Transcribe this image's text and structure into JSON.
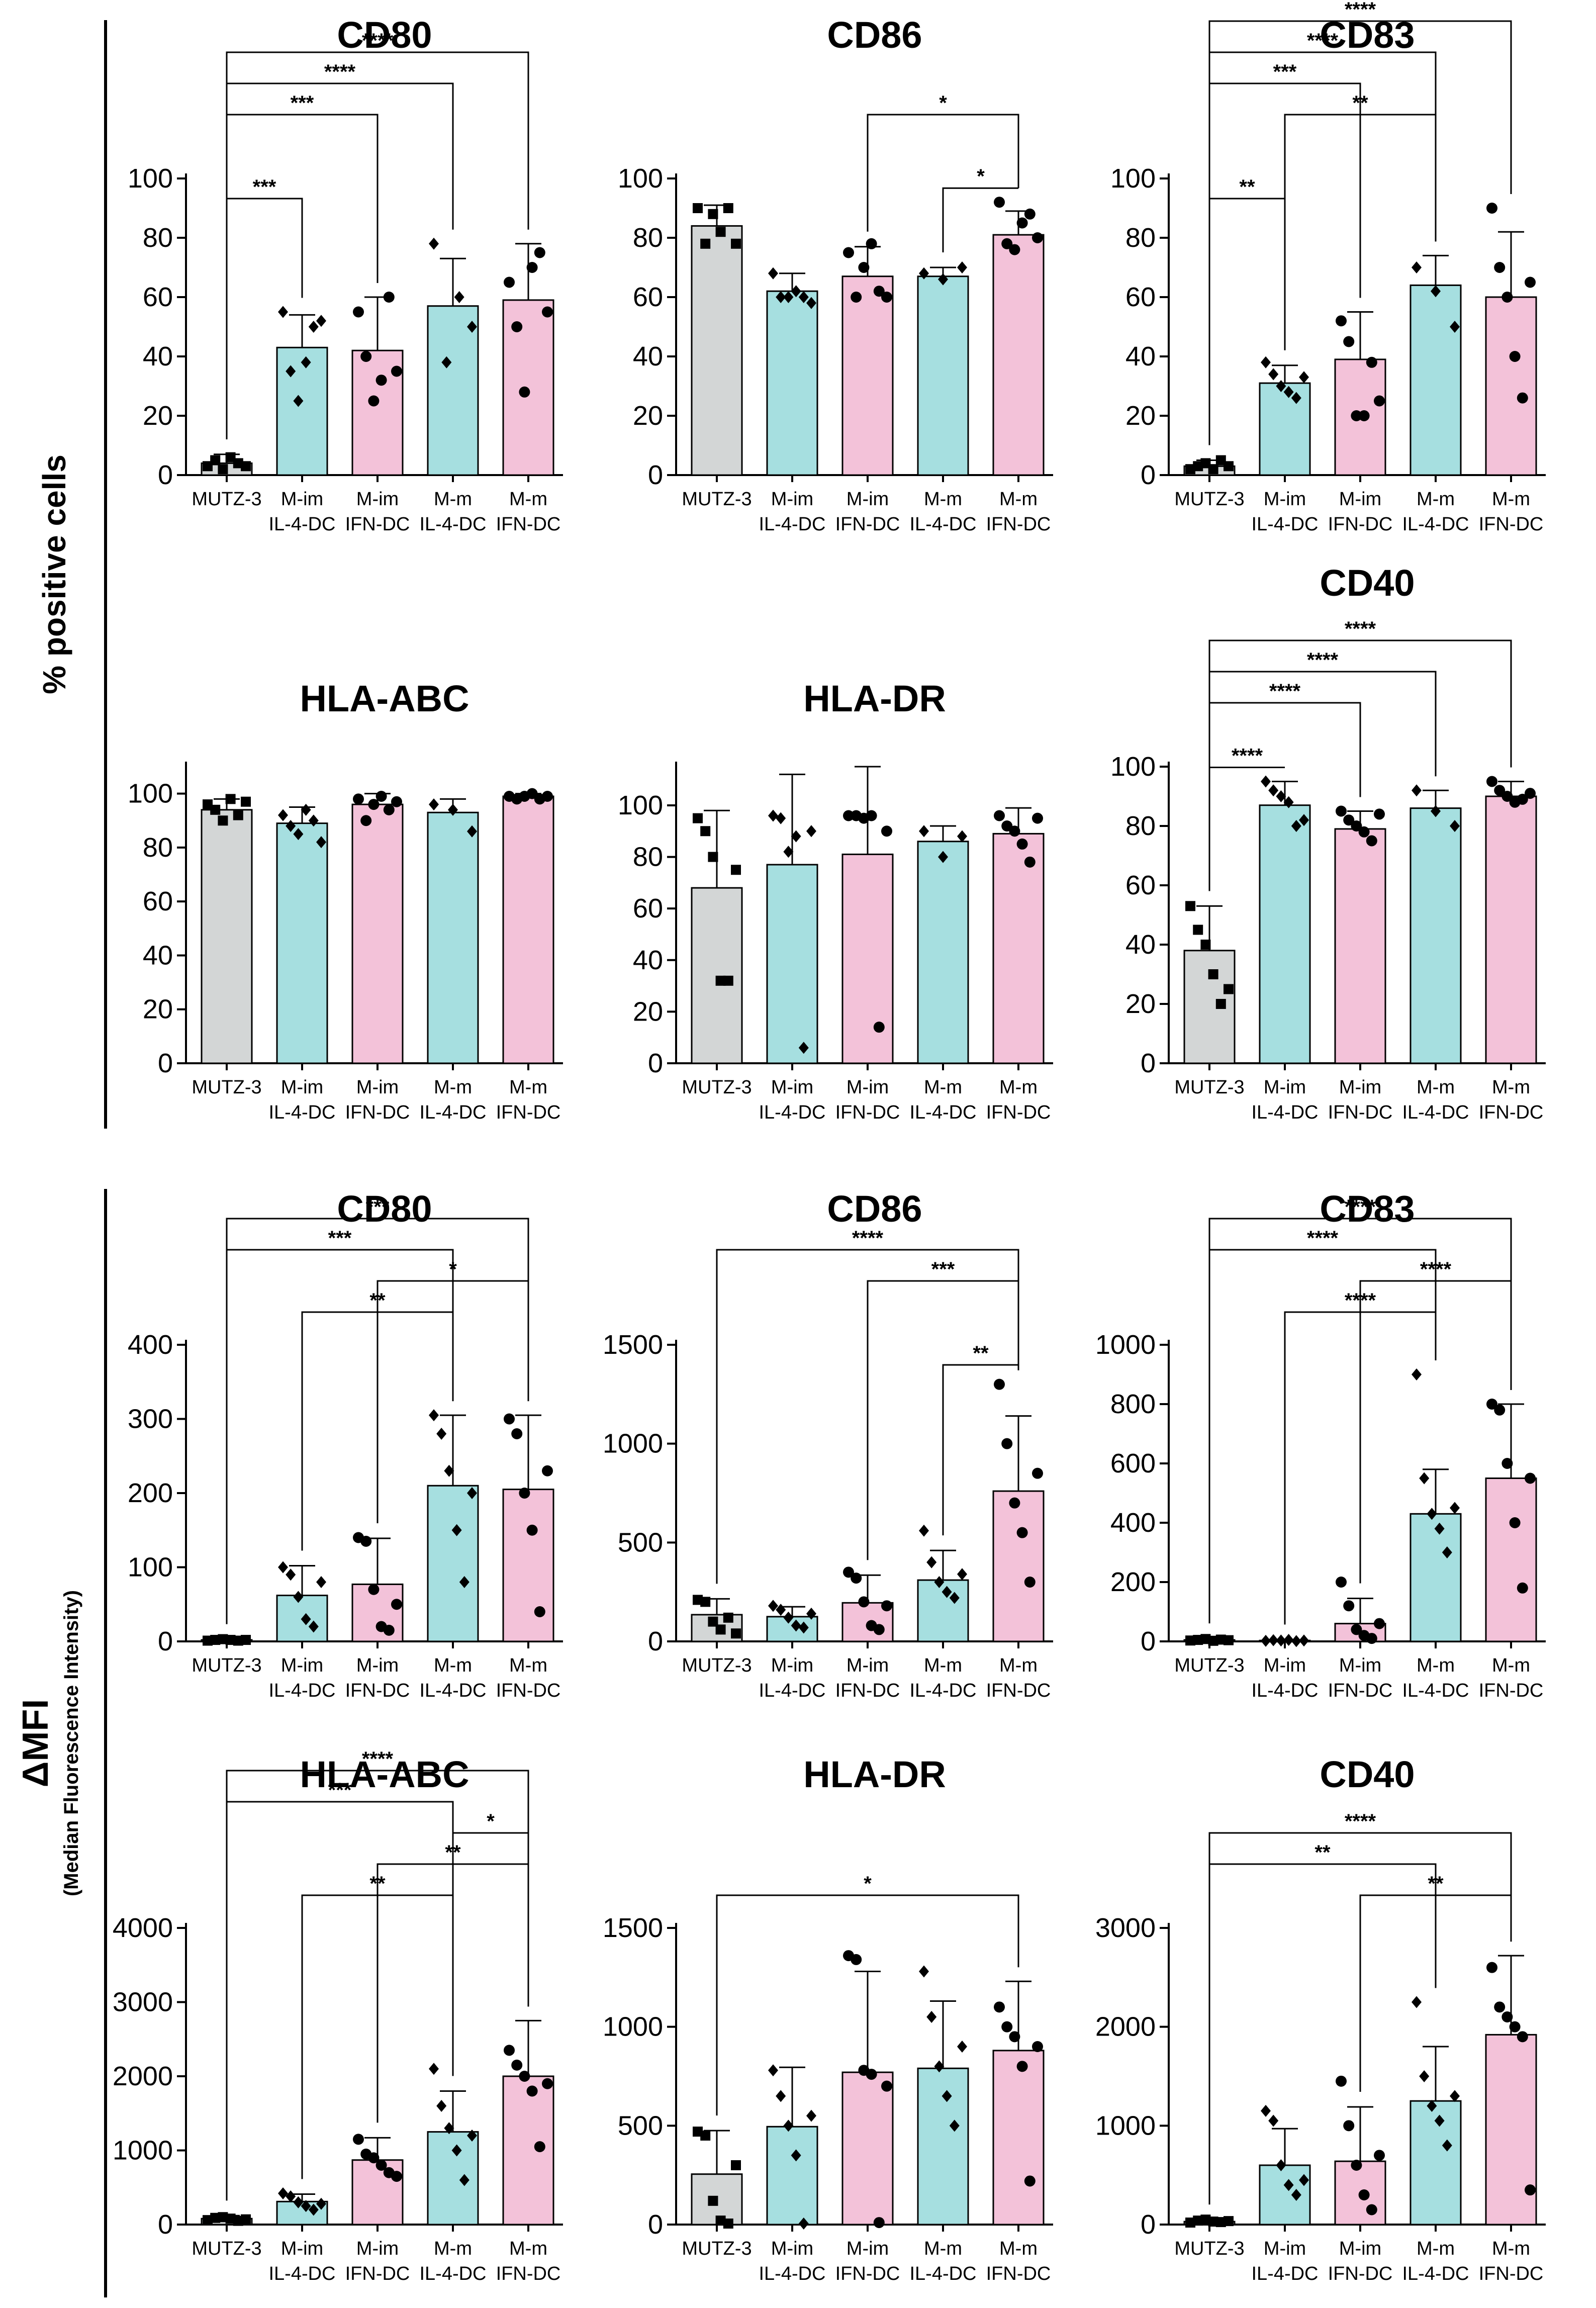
{
  "colors": {
    "gray": "#d3d6d6",
    "cyan": "#a6dfe0",
    "pink": "#f3c2d9",
    "axis": "#000000"
  },
  "sections": [
    {
      "ylabel": "% positive cells",
      "ylabel_sub": ""
    },
    {
      "ylabel": "ΔMFI",
      "ylabel_sub": "(Median Fluorescence Intensity)"
    }
  ],
  "chart_data": [
    {
      "type": "bar",
      "section": 0,
      "row": 0,
      "col": 0,
      "title": "CD80",
      "categories": [
        "MUTZ-3",
        "M-im IL-4-DC",
        "M-im IFN-DC",
        "M-m IL-4-DC",
        "M-m IFN-DC"
      ],
      "values": [
        4,
        43,
        42,
        57,
        59
      ],
      "errors": [
        3,
        11,
        18,
        16,
        19
      ],
      "ylim": [
        0,
        100
      ],
      "yticks": [
        0,
        20,
        40,
        60,
        80,
        100
      ],
      "points": [
        [
          3,
          5,
          2,
          6,
          4,
          3
        ],
        [
          55,
          35,
          25,
          38,
          50,
          52
        ],
        [
          55,
          40,
          25,
          32,
          60,
          35
        ],
        [
          78,
          38,
          60,
          50
        ],
        [
          65,
          50,
          28,
          70,
          75,
          55
        ]
      ],
      "markers": [
        "square",
        "diamond",
        "circle",
        "diamond",
        "circle"
      ],
      "sig": [
        {
          "from": 0,
          "to": 1,
          "label": "***"
        },
        {
          "from": 0,
          "to": 2,
          "label": "***"
        },
        {
          "from": 0,
          "to": 3,
          "label": "****"
        },
        {
          "from": 0,
          "to": 4,
          "label": "****"
        }
      ]
    },
    {
      "type": "bar",
      "section": 0,
      "row": 0,
      "col": 1,
      "title": "CD86",
      "categories": [
        "MUTZ-3",
        "M-im IL-4-DC",
        "M-im IFN-DC",
        "M-m IL-4-DC",
        "M-m IFN-DC"
      ],
      "values": [
        84,
        62,
        67,
        67,
        81
      ],
      "errors": [
        7,
        6,
        10,
        3,
        8
      ],
      "ylim": [
        0,
        100
      ],
      "yticks": [
        0,
        20,
        40,
        60,
        80,
        100
      ],
      "points": [
        [
          90,
          78,
          88,
          82,
          90,
          78
        ],
        [
          68,
          60,
          60,
          62,
          60,
          58
        ],
        [
          75,
          60,
          70,
          78,
          62,
          60
        ],
        [
          68,
          66,
          70
        ],
        [
          92,
          78,
          76,
          85,
          88,
          80
        ]
      ],
      "markers": [
        "square",
        "diamond",
        "circle",
        "diamond",
        "circle"
      ],
      "sig": [
        {
          "from": 3,
          "to": 4,
          "label": "*"
        },
        {
          "from": 2,
          "to": 4,
          "label": "*"
        }
      ]
    },
    {
      "type": "bar",
      "section": 0,
      "row": 0,
      "col": 2,
      "title": "CD83",
      "categories": [
        "MUTZ-3",
        "M-im IL-4-DC",
        "M-im IFN-DC",
        "M-m IL-4-DC",
        "M-m IFN-DC"
      ],
      "values": [
        3,
        31,
        39,
        64,
        60
      ],
      "errors": [
        2,
        6,
        16,
        10,
        22
      ],
      "ylim": [
        0,
        100
      ],
      "yticks": [
        0,
        20,
        40,
        60,
        80,
        100
      ],
      "points": [
        [
          2,
          3,
          4,
          2,
          5,
          3
        ],
        [
          38,
          34,
          30,
          28,
          26,
          33
        ],
        [
          52,
          45,
          20,
          20,
          38,
          25
        ],
        [
          70,
          62,
          50
        ],
        [
          90,
          70,
          60,
          40,
          26,
          65
        ]
      ],
      "markers": [
        "square",
        "diamond",
        "circle",
        "diamond",
        "circle"
      ],
      "sig": [
        {
          "from": 0,
          "to": 1,
          "label": "**"
        },
        {
          "from": 1,
          "to": 3,
          "label": "**"
        },
        {
          "from": 0,
          "to": 2,
          "label": "***"
        },
        {
          "from": 0,
          "to": 3,
          "label": "****"
        },
        {
          "from": 0,
          "to": 4,
          "label": "****"
        }
      ]
    },
    {
      "type": "bar",
      "section": 0,
      "row": 1,
      "col": 0,
      "title": "HLA-ABC",
      "categories": [
        "MUTZ-3",
        "M-im IL-4-DC",
        "M-im IFN-DC",
        "M-m IL-4-DC",
        "M-m IFN-DC"
      ],
      "values": [
        94,
        89,
        96,
        93,
        99
      ],
      "errors": [
        4,
        6,
        4,
        5,
        1
      ],
      "ylim": [
        0,
        110
      ],
      "yticks": [
        0,
        20,
        40,
        60,
        80,
        100
      ],
      "points": [
        [
          96,
          94,
          90,
          98,
          92,
          97
        ],
        [
          92,
          88,
          85,
          94,
          90,
          82
        ],
        [
          98,
          90,
          96,
          99,
          94,
          97
        ],
        [
          96,
          94,
          86
        ],
        [
          99,
          98,
          99,
          100,
          98,
          99
        ]
      ],
      "markers": [
        "square",
        "diamond",
        "circle",
        "diamond",
        "circle"
      ],
      "sig": []
    },
    {
      "type": "bar",
      "section": 0,
      "row": 1,
      "col": 1,
      "title": "HLA-DR",
      "categories": [
        "MUTZ-3",
        "M-im IL-4-DC",
        "M-im IFN-DC",
        "M-m IL-4-DC",
        "M-m IFN-DC"
      ],
      "values": [
        68,
        77,
        81,
        86,
        89
      ],
      "errors": [
        30,
        35,
        34,
        6,
        10
      ],
      "ylim": [
        0,
        115
      ],
      "yticks": [
        0,
        20,
        40,
        60,
        80,
        100
      ],
      "points": [
        [
          95,
          90,
          80,
          32,
          32,
          75
        ],
        [
          96,
          95,
          82,
          88,
          6,
          90
        ],
        [
          96,
          96,
          95,
          96,
          14,
          90
        ],
        [
          90,
          80,
          88
        ],
        [
          96,
          92,
          90,
          85,
          78,
          95
        ]
      ],
      "markers": [
        "square",
        "diamond",
        "circle",
        "diamond",
        "circle"
      ],
      "sig": []
    },
    {
      "type": "bar",
      "section": 0,
      "row": 1,
      "col": 2,
      "title": "CD40",
      "categories": [
        "MUTZ-3",
        "M-im IL-4-DC",
        "M-im IFN-DC",
        "M-m IL-4-DC",
        "M-m IFN-DC"
      ],
      "values": [
        38,
        87,
        79,
        86,
        90
      ],
      "errors": [
        15,
        8,
        6,
        6,
        5
      ],
      "ylim": [
        0,
        100
      ],
      "yticks": [
        0,
        20,
        40,
        60,
        80,
        100
      ],
      "points": [
        [
          53,
          45,
          40,
          30,
          20,
          25
        ],
        [
          95,
          92,
          90,
          88,
          80,
          82
        ],
        [
          85,
          82,
          80,
          78,
          75,
          84
        ],
        [
          92,
          85,
          80
        ],
        [
          95,
          92,
          90,
          88,
          89,
          91
        ]
      ],
      "markers": [
        "square",
        "diamond",
        "circle",
        "diamond",
        "circle"
      ],
      "sig": [
        {
          "from": 0,
          "to": 1,
          "label": "****"
        },
        {
          "from": 0,
          "to": 2,
          "label": "****"
        },
        {
          "from": 0,
          "to": 3,
          "label": "****"
        },
        {
          "from": 0,
          "to": 4,
          "label": "****"
        }
      ]
    },
    {
      "type": "bar",
      "section": 1,
      "row": 0,
      "col": 0,
      "title": "CD80",
      "categories": [
        "MUTZ-3",
        "M-im IL-4-DC",
        "M-im IFN-DC",
        "M-m IL-4-DC",
        "M-m IFN-DC"
      ],
      "values": [
        2,
        62,
        77,
        210,
        205
      ],
      "errors": [
        1,
        40,
        62,
        95,
        100
      ],
      "ylim": [
        0,
        400
      ],
      "yticks": [
        0,
        100,
        200,
        300,
        400
      ],
      "points": [
        [
          1,
          2,
          3,
          2,
          1,
          2
        ],
        [
          100,
          90,
          60,
          30,
          20,
          80
        ],
        [
          140,
          135,
          70,
          20,
          15,
          50
        ],
        [
          305,
          280,
          230,
          150,
          80,
          200
        ],
        [
          300,
          280,
          200,
          150,
          40,
          230
        ]
      ],
      "markers": [
        "square",
        "diamond",
        "circle",
        "diamond",
        "circle"
      ],
      "sig": [
        {
          "from": 1,
          "to": 3,
          "label": "**"
        },
        {
          "from": 2,
          "to": 4,
          "label": "*"
        },
        {
          "from": 0,
          "to": 3,
          "label": "***"
        },
        {
          "from": 0,
          "to": 4,
          "label": "***"
        }
      ]
    },
    {
      "type": "bar",
      "section": 1,
      "row": 0,
      "col": 1,
      "title": "CD86",
      "categories": [
        "MUTZ-3",
        "M-im IL-4-DC",
        "M-im IFN-DC",
        "M-m IL-4-DC",
        "M-m IFN-DC"
      ],
      "values": [
        135,
        125,
        195,
        310,
        760
      ],
      "errors": [
        80,
        50,
        140,
        150,
        380
      ],
      "ylim": [
        0,
        1500
      ],
      "yticks": [
        0,
        500,
        1000,
        1500
      ],
      "points": [
        [
          210,
          200,
          100,
          60,
          120,
          40
        ],
        [
          180,
          160,
          120,
          80,
          70,
          140
        ],
        [
          350,
          320,
          200,
          80,
          60,
          180
        ],
        [
          560,
          400,
          300,
          250,
          220,
          340
        ],
        [
          1300,
          1000,
          700,
          550,
          300,
          850
        ]
      ],
      "markers": [
        "square",
        "diamond",
        "circle",
        "diamond",
        "circle"
      ],
      "sig": [
        {
          "from": 3,
          "to": 4,
          "label": "**"
        },
        {
          "from": 2,
          "to": 4,
          "label": "***"
        },
        {
          "from": 0,
          "to": 4,
          "label": "****"
        }
      ]
    },
    {
      "type": "bar",
      "section": 1,
      "row": 0,
      "col": 2,
      "title": "CD83",
      "categories": [
        "MUTZ-3",
        "M-im IL-4-DC",
        "M-im IFN-DC",
        "M-m IL-4-DC",
        "M-m IFN-DC"
      ],
      "values": [
        5,
        3,
        60,
        430,
        550
      ],
      "errors": [
        5,
        3,
        85,
        150,
        250
      ],
      "ylim": [
        0,
        1000
      ],
      "yticks": [
        0,
        200,
        400,
        600,
        800,
        1000
      ],
      "points": [
        [
          3,
          5,
          8,
          2,
          6,
          4
        ],
        [
          2,
          4,
          3,
          5,
          1,
          3
        ],
        [
          200,
          120,
          40,
          20,
          10,
          60
        ],
        [
          900,
          550,
          430,
          380,
          300,
          450
        ],
        [
          800,
          780,
          600,
          400,
          180,
          550
        ]
      ],
      "markers": [
        "square",
        "diamond",
        "circle",
        "diamond",
        "circle"
      ],
      "sig": [
        {
          "from": 1,
          "to": 3,
          "label": "****"
        },
        {
          "from": 2,
          "to": 4,
          "label": "****"
        },
        {
          "from": 0,
          "to": 3,
          "label": "****"
        },
        {
          "from": 0,
          "to": 4,
          "label": "****"
        }
      ]
    },
    {
      "type": "bar",
      "section": 1,
      "row": 1,
      "col": 0,
      "title": "HLA-ABC",
      "categories": [
        "MUTZ-3",
        "M-im IL-4-DC",
        "M-im IFN-DC",
        "M-m IL-4-DC",
        "M-m IFN-DC"
      ],
      "values": [
        80,
        310,
        870,
        1250,
        2000
      ],
      "errors": [
        40,
        100,
        300,
        550,
        750
      ],
      "ylim": [
        0,
        4000
      ],
      "yticks": [
        0,
        1000,
        2000,
        3000,
        4000
      ],
      "points": [
        [
          60,
          90,
          100,
          80,
          50,
          70
        ],
        [
          420,
          380,
          300,
          250,
          200,
          280
        ],
        [
          1150,
          950,
          900,
          800,
          700,
          650
        ],
        [
          2100,
          1600,
          1300,
          1000,
          600,
          1200
        ],
        [
          2350,
          2150,
          2000,
          1800,
          1050,
          1900
        ]
      ],
      "markers": [
        "square",
        "diamond",
        "circle",
        "diamond",
        "circle"
      ],
      "sig": [
        {
          "from": 1,
          "to": 3,
          "label": "**"
        },
        {
          "from": 2,
          "to": 4,
          "label": "**"
        },
        {
          "from": 3,
          "to": 4,
          "label": "*"
        },
        {
          "from": 0,
          "to": 3,
          "label": "***"
        },
        {
          "from": 0,
          "to": 4,
          "label": "****"
        }
      ]
    },
    {
      "type": "bar",
      "section": 1,
      "row": 1,
      "col": 1,
      "title": "HLA-DR",
      "categories": [
        "MUTZ-3",
        "M-im IL-4-DC",
        "M-im IFN-DC",
        "M-m IL-4-DC",
        "M-m IFN-DC"
      ],
      "values": [
        255,
        495,
        770,
        790,
        880
      ],
      "errors": [
        220,
        300,
        510,
        340,
        350
      ],
      "ylim": [
        0,
        1500
      ],
      "yticks": [
        0,
        500,
        1000,
        1500
      ],
      "points": [
        [
          470,
          450,
          120,
          20,
          5,
          300
        ],
        [
          780,
          650,
          500,
          350,
          5,
          550
        ],
        [
          1360,
          1340,
          780,
          760,
          10,
          700
        ],
        [
          1280,
          1050,
          800,
          650,
          500,
          900
        ],
        [
          1100,
          1000,
          950,
          800,
          220,
          900
        ]
      ],
      "markers": [
        "square",
        "diamond",
        "circle",
        "diamond",
        "circle"
      ],
      "sig": [
        {
          "from": 0,
          "to": 4,
          "label": "*"
        }
      ]
    },
    {
      "type": "bar",
      "section": 1,
      "row": 1,
      "col": 2,
      "title": "CD40",
      "categories": [
        "MUTZ-3",
        "M-im IL-4-DC",
        "M-im IFN-DC",
        "M-m IL-4-DC",
        "M-m IFN-DC"
      ],
      "values": [
        30,
        600,
        640,
        1250,
        1920
      ],
      "errors": [
        20,
        370,
        550,
        550,
        800
      ],
      "ylim": [
        0,
        3000
      ],
      "yticks": [
        0,
        1000,
        2000,
        3000
      ],
      "points": [
        [
          20,
          40,
          50,
          30,
          25,
          35
        ],
        [
          1150,
          1050,
          600,
          400,
          300,
          450
        ],
        [
          1450,
          1000,
          600,
          300,
          150,
          700
        ],
        [
          2250,
          1500,
          1200,
          1050,
          800,
          1300
        ],
        [
          2600,
          2200,
          2100,
          2000,
          1900,
          350
        ]
      ],
      "markers": [
        "square",
        "diamond",
        "circle",
        "diamond",
        "circle"
      ],
      "sig": [
        {
          "from": 2,
          "to": 4,
          "label": "**"
        },
        {
          "from": 0,
          "to": 3,
          "label": "**"
        },
        {
          "from": 0,
          "to": 4,
          "label": "****"
        }
      ]
    }
  ]
}
